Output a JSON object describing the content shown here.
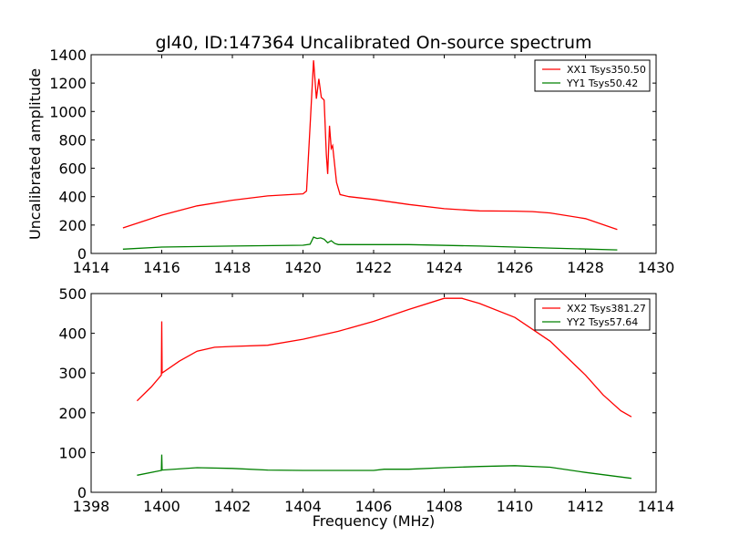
{
  "chart_data": [
    {
      "type": "line",
      "title": "gl40, ID:147364 Uncalibrated On-source spectrum",
      "xlabel": "",
      "ylabel": "Uncalibrated amplitude",
      "xlim": [
        1414,
        1430
      ],
      "ylim": [
        0,
        1400
      ],
      "xticks": [
        "1414",
        "1416",
        "1418",
        "1420",
        "1422",
        "1424",
        "1426",
        "1428",
        "1430"
      ],
      "yticks": [
        "0",
        "200",
        "400",
        "600",
        "800",
        "1000",
        "1200",
        "1400"
      ],
      "grid": false,
      "legend_position": "top-right",
      "series": [
        {
          "name": "XX1 Tsys350.50",
          "color": "#ff0000",
          "x": [
            1414.9,
            1416,
            1417,
            1418,
            1419,
            1420,
            1420.1,
            1420.2,
            1420.3,
            1420.38,
            1420.45,
            1420.52,
            1420.6,
            1420.66,
            1420.7,
            1420.75,
            1420.8,
            1420.84,
            1420.95,
            1421.05,
            1421.3,
            1422,
            1423,
            1424,
            1425,
            1426,
            1426.5,
            1427,
            1428,
            1428.9
          ],
          "y": [
            180,
            270,
            335,
            375,
            405,
            420,
            440,
            900,
            1360,
            1090,
            1230,
            1100,
            1080,
            700,
            560,
            900,
            740,
            760,
            500,
            415,
            400,
            380,
            345,
            315,
            300,
            298,
            295,
            285,
            245,
            168
          ]
        },
        {
          "name": "YY1 Tsys50.42",
          "color": "#008000",
          "x": [
            1414.9,
            1416,
            1418,
            1420,
            1420.2,
            1420.3,
            1420.4,
            1420.5,
            1420.6,
            1420.7,
            1420.8,
            1420.9,
            1421,
            1423,
            1425,
            1427,
            1428.9
          ],
          "y": [
            30,
            45,
            52,
            58,
            65,
            115,
            105,
            110,
            100,
            75,
            90,
            70,
            62,
            62,
            52,
            38,
            25
          ]
        }
      ]
    },
    {
      "type": "line",
      "title": "",
      "xlabel": "Frequency (MHz)",
      "ylabel": "",
      "xlim": [
        1398,
        1414
      ],
      "ylim": [
        0,
        500
      ],
      "xticks": [
        "1398",
        "1400",
        "1402",
        "1404",
        "1406",
        "1408",
        "1410",
        "1412",
        "1414"
      ],
      "yticks": [
        "0",
        "100",
        "200",
        "300",
        "400",
        "500"
      ],
      "grid": false,
      "legend_position": "top-right",
      "series": [
        {
          "name": "XX2 Tsys381.27",
          "color": "#ff0000",
          "x": [
            1399.3,
            1399.7,
            1399.99,
            1400,
            1400.01,
            1400.5,
            1401,
            1401.5,
            1402,
            1403,
            1404,
            1405,
            1406,
            1407,
            1408,
            1408.5,
            1409,
            1410,
            1411,
            1412,
            1412.5,
            1413,
            1413.3
          ],
          "y": [
            230,
            265,
            295,
            430,
            300,
            330,
            355,
            365,
            367,
            370,
            385,
            405,
            430,
            460,
            488,
            488,
            475,
            440,
            380,
            295,
            245,
            205,
            190
          ]
        },
        {
          "name": "YY2 Tsys57.64",
          "color": "#008000",
          "x": [
            1399.3,
            1399.99,
            1400,
            1400.01,
            1401,
            1402,
            1403,
            1404,
            1406,
            1406.3,
            1407,
            1408,
            1409,
            1410,
            1411,
            1412,
            1413.3
          ],
          "y": [
            43,
            55,
            95,
            56,
            62,
            60,
            56,
            55,
            55,
            58,
            58,
            62,
            65,
            67,
            63,
            50,
            35
          ]
        }
      ]
    }
  ]
}
